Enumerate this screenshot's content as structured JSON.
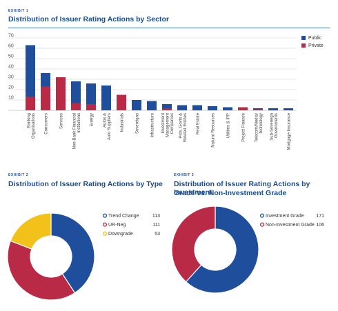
{
  "exhibit1": {
    "label": "EXHIBIT 1",
    "title": "Distribution of Issuer Rating Actions by Sector"
  },
  "exhibit2": {
    "label": "EXHIBIT 2",
    "title": "Distribution of Issuer Rating Actions by Type"
  },
  "exhibit3": {
    "label": "EXHIBIT 3",
    "title_line1": "Distribution of Issuer Rating Actions by Investment",
    "title_line2": "Grade vs. Non-Investment Grade"
  },
  "chart_data": [
    {
      "type": "bar",
      "stacked": true,
      "title": "Distribution of Issuer Rating Actions by Sector",
      "categories": [
        [
          "Banking",
          "Organisations"
        ],
        [
          "Consumers"
        ],
        [
          "Services"
        ],
        [
          "Non-Bank Financial",
          "Institutions"
        ],
        [
          "Energy"
        ],
        [
          "Autos &",
          "Auto Suppliers"
        ],
        [
          "Industrials"
        ],
        [
          "Sovereigns"
        ],
        [
          "Infrastructure"
        ],
        [
          "Investment",
          "Management",
          "Companies"
        ],
        [
          "Prov. Govts &",
          "Related Entities"
        ],
        [
          "Real Estate"
        ],
        [
          "Natural Resources"
        ],
        [
          "Utilities & IPP"
        ],
        [
          "Project Finance"
        ],
        [
          "Telecom/Media/",
          "Technology"
        ],
        [
          "Sub-Sovereign",
          "Governments"
        ],
        [
          "Mortgage Insurance"
        ]
      ],
      "series": [
        {
          "name": "Private",
          "color": "#b82a45",
          "values": [
            13,
            23,
            32,
            7,
            6,
            0,
            15,
            0,
            0,
            2,
            0,
            0,
            0,
            0,
            3,
            1,
            0,
            0
          ]
        },
        {
          "name": "Public",
          "color": "#1f4f9c",
          "values": [
            50,
            13,
            0,
            21,
            20,
            24,
            0,
            10,
            9,
            4,
            5,
            5,
            4,
            3,
            0,
            1,
            2,
            2
          ]
        }
      ],
      "yticks": [
        10,
        20,
        30,
        40,
        50,
        60,
        70
      ],
      "ylim": [
        0,
        70
      ],
      "legend_position": "right",
      "grid": false
    },
    {
      "type": "pie",
      "donut": true,
      "title": "Distribution of Issuer Rating Actions by Type",
      "slices": [
        {
          "label": "Trend Change",
          "value": 113,
          "color": "#1f4f9c"
        },
        {
          "label": "UR-Neg",
          "value": 111,
          "color": "#b82a45"
        },
        {
          "label": "Downgrade",
          "value": 53,
          "color": "#f2c21b"
        }
      ]
    },
    {
      "type": "pie",
      "donut": true,
      "title": "Distribution of Issuer Rating Actions by Investment Grade vs. Non-Investment Grade",
      "slices": [
        {
          "label": "Investment Grade",
          "value": 171,
          "color": "#1f4f9c"
        },
        {
          "label": "Non-Investment Grade",
          "value": 106,
          "color": "#b82a45"
        }
      ]
    }
  ]
}
